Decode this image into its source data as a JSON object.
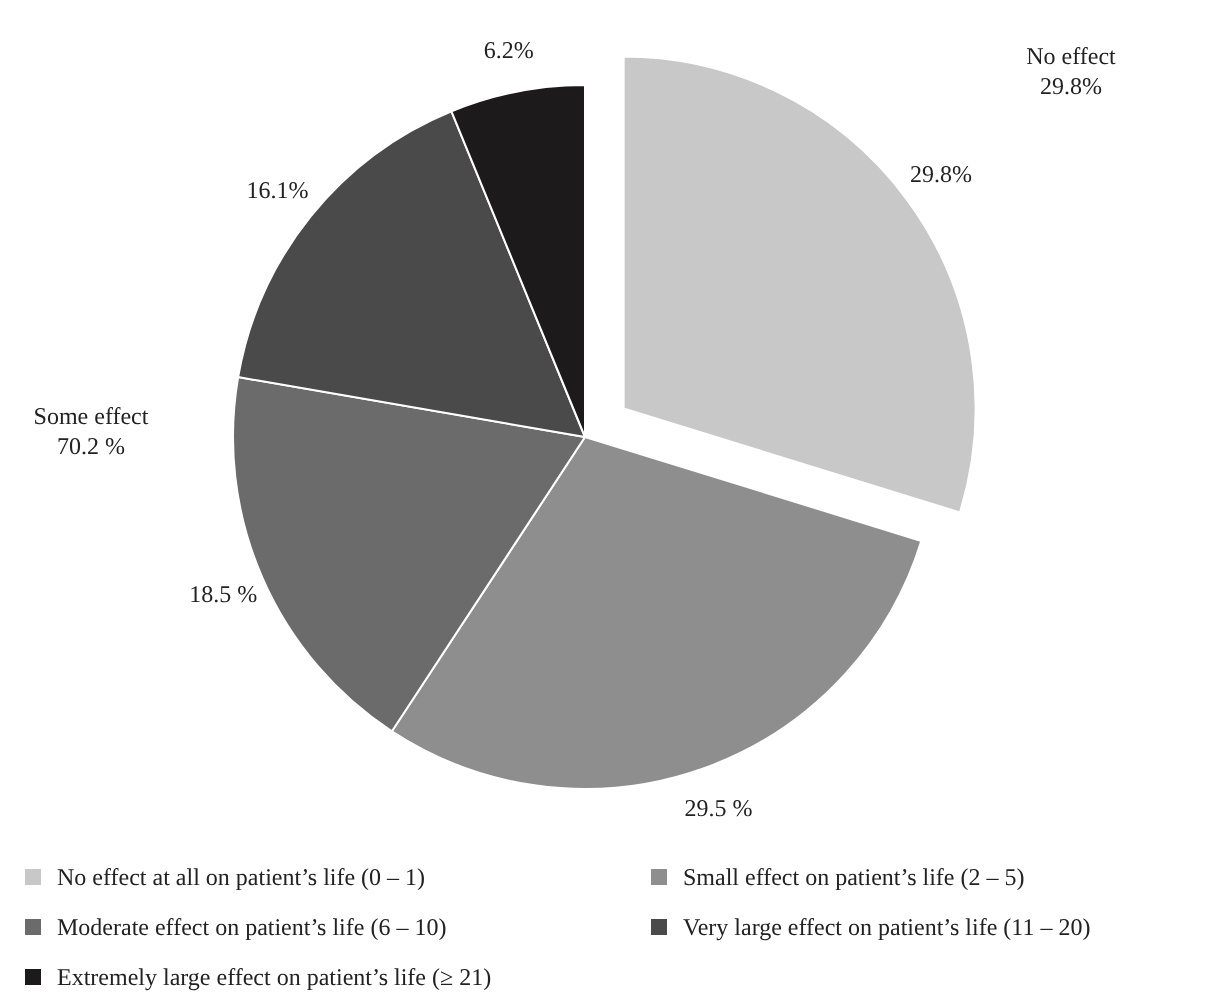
{
  "chart_data": {
    "type": "pie",
    "categories": [
      "No effect at all on patient’s life (0 – 1)",
      "Small effect on patient’s life (2 – 5)",
      "Moderate effect on patient’s life (6 – 10)",
      "Very large effect on patient’s life (11 – 20)",
      "Extremely large effect on patient’s life (≥ 21)"
    ],
    "values": [
      29.8,
      29.5,
      18.5,
      16.1,
      6.2
    ],
    "colors": [
      "#c8c8c8",
      "#8e8e8e",
      "#6b6b6c",
      "#4a4a4b",
      "#1c1a1b"
    ],
    "value_labels": [
      "29.8%",
      "29.5 %",
      "18.5 %",
      "16.1%",
      "6.2%"
    ],
    "annotations": [
      "No effect\n29.8%",
      "Some effect\n70.2 %"
    ],
    "legend": "bottom"
  }
}
